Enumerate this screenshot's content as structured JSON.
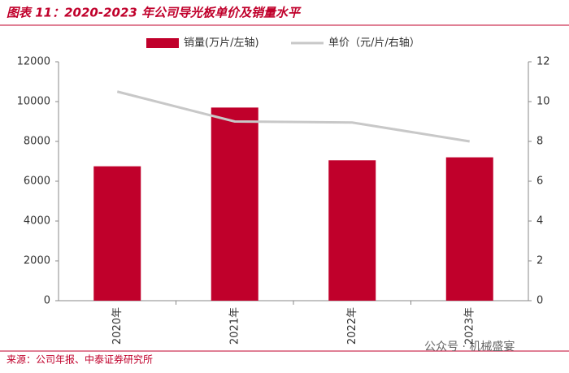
{
  "chart_data": {
    "type": "bar",
    "title": "图表 11：2020-2023 年公司导光板单价及销量水平",
    "categories": [
      "2020年",
      "2021年",
      "2022年",
      "2023年"
    ],
    "series": [
      {
        "name": "销量(万片/左轴)",
        "type": "bar",
        "color": "#c0002b",
        "values": [
          6750,
          9700,
          7050,
          7200
        ]
      },
      {
        "name": "单价（元/片/右轴）",
        "type": "line",
        "axis": "y2",
        "color": "#c8c8c8",
        "values": [
          10.5,
          9.0,
          8.95,
          8.0
        ]
      }
    ],
    "ylim": [
      0,
      12000
    ],
    "yticks": [
      0,
      2000,
      4000,
      6000,
      8000,
      10000,
      12000
    ],
    "y2lim": [
      0,
      12
    ],
    "y2ticks": [
      0,
      2,
      4,
      6,
      8,
      10,
      12
    ],
    "grid": false,
    "legend": "top",
    "source": "来源：公司年报、中泰证券研究所",
    "watermark": "公众号 · 机械盛宴"
  }
}
